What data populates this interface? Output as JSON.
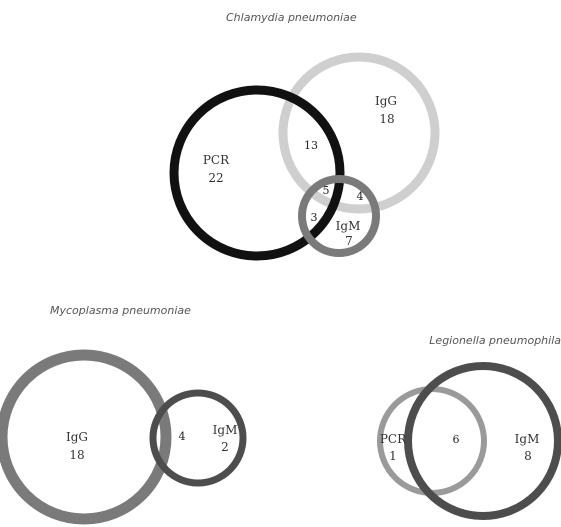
{
  "panels": [
    {
      "title": "Chlamydia pneumoniae",
      "sets": [
        {
          "label": "PCR",
          "count": "22",
          "color": "#111111"
        },
        {
          "label": "IgG",
          "count": "18",
          "color": "#cfcfcf"
        },
        {
          "label": "IgM",
          "count": "7",
          "color": "#7a7a7a"
        }
      ],
      "overlaps": {
        "pcr_igg": "13",
        "pcr_igg_igm": "5",
        "igg_igm": "4",
        "pcr_igm": "3"
      }
    },
    {
      "title": "Mycoplasma pneumoniae",
      "sets": [
        {
          "label": "IgG",
          "count": "18",
          "color": "#7a7a7a"
        },
        {
          "label": "IgM",
          "count": "2",
          "color": "#4d4d4d"
        }
      ],
      "overlaps": {
        "igg_igm": "4"
      }
    },
    {
      "title": "Legionella pneumophila",
      "sets": [
        {
          "label": "PCR",
          "count": "1",
          "color": "#9a9a9a"
        },
        {
          "label": "IgM",
          "count": "8",
          "color": "#4d4d4d"
        }
      ],
      "overlaps": {
        "pcr_igm": "6"
      }
    }
  ]
}
